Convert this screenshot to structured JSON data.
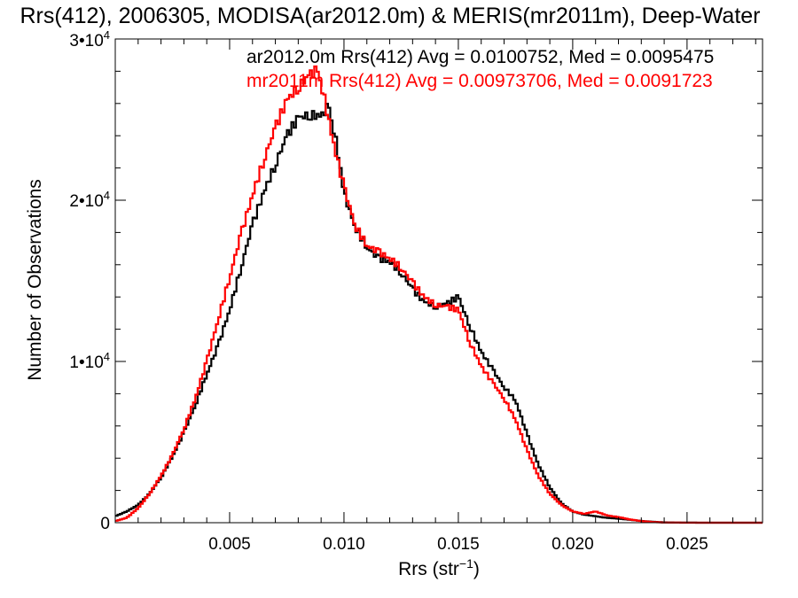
{
  "chart_data": {
    "type": "line",
    "title": "Rrs(412), 2006305, MODISA(ar2012.0m) & MERIS(mr2011m), Deep-Water",
    "xlabel": "Rrs (str",
    "xlabel_sup": "−1",
    "xlabel_end": ")",
    "ylabel": "Number of Observations",
    "xlim": [
      0.0,
      0.0283
    ],
    "ylim": [
      0,
      30000
    ],
    "x_ticks": [
      {
        "value": 0.005,
        "label": "0.005"
      },
      {
        "value": 0.01,
        "label": "0.010"
      },
      {
        "value": 0.015,
        "label": "0.015"
      },
      {
        "value": 0.02,
        "label": "0.020"
      },
      {
        "value": 0.025,
        "label": "0.025"
      }
    ],
    "y_ticks": [
      {
        "value": 0,
        "label": "0",
        "exp": ""
      },
      {
        "value": 10000,
        "label": "1•10",
        "exp": "4"
      },
      {
        "value": 20000,
        "label": "2•10",
        "exp": "4"
      },
      {
        "value": 30000,
        "label": "3•10",
        "exp": "4"
      }
    ],
    "legend": [
      {
        "text": "ar2012.0m Rrs(412) Avg = 0.0100752, Med = 0.0095475",
        "color": "#000000"
      },
      {
        "text": "mr2011m Rrs(412) Avg = 0.00973706, Med = 0.0091723",
        "color": "#ff0000"
      }
    ],
    "legend_placement": "top-right",
    "grid": false,
    "series": [
      {
        "color": "#000000",
        "x": [
          0.0,
          0.0005,
          0.001,
          0.0015,
          0.002,
          0.0025,
          0.003,
          0.0035,
          0.004,
          0.0045,
          0.005,
          0.0055,
          0.006,
          0.0065,
          0.007,
          0.0075,
          0.008,
          0.0085,
          0.009,
          0.0093,
          0.0095,
          0.0098,
          0.01,
          0.0105,
          0.011,
          0.0115,
          0.012,
          0.0125,
          0.013,
          0.0135,
          0.014,
          0.0145,
          0.015,
          0.0155,
          0.016,
          0.0165,
          0.017,
          0.0175,
          0.018,
          0.0185,
          0.019,
          0.0195,
          0.02,
          0.0205,
          0.021,
          0.0215,
          0.022,
          0.0225,
          0.023,
          0.0235,
          0.024,
          0.025,
          0.026,
          0.0283
        ],
        "y": [
          400,
          700,
          1100,
          1800,
          2800,
          4100,
          5600,
          7300,
          9200,
          11000,
          13200,
          15800,
          18500,
          20500,
          22200,
          24000,
          25100,
          25300,
          25200,
          25800,
          24800,
          22500,
          20400,
          18300,
          17100,
          16400,
          16200,
          15500,
          14500,
          13700,
          13400,
          13600,
          14000,
          12200,
          10600,
          9500,
          8400,
          7600,
          5500,
          3600,
          2200,
          1200,
          700,
          500,
          400,
          300,
          250,
          180,
          110,
          60,
          20,
          5,
          0,
          0
        ]
      },
      {
        "color": "#ff0000",
        "x": [
          0.0,
          0.0005,
          0.001,
          0.0015,
          0.002,
          0.0025,
          0.003,
          0.0035,
          0.004,
          0.0045,
          0.005,
          0.0055,
          0.006,
          0.0065,
          0.007,
          0.0075,
          0.008,
          0.0085,
          0.0088,
          0.009,
          0.0095,
          0.01,
          0.0105,
          0.011,
          0.0115,
          0.012,
          0.0125,
          0.013,
          0.0135,
          0.014,
          0.0145,
          0.015,
          0.0155,
          0.016,
          0.0165,
          0.017,
          0.0175,
          0.018,
          0.0185,
          0.019,
          0.0195,
          0.02,
          0.0205,
          0.021,
          0.0215,
          0.022,
          0.0225,
          0.023,
          0.0235,
          0.024,
          0.025,
          0.026,
          0.0283
        ],
        "y": [
          100,
          300,
          900,
          1800,
          2900,
          4200,
          5800,
          7700,
          10000,
          12600,
          15200,
          17900,
          20300,
          22500,
          24500,
          26200,
          27000,
          27800,
          28000,
          27300,
          23800,
          20800,
          18400,
          17200,
          16800,
          16400,
          15800,
          14900,
          14000,
          13500,
          13400,
          13200,
          11200,
          9700,
          8700,
          7700,
          6400,
          4500,
          2900,
          1800,
          1100,
          700,
          550,
          700,
          450,
          350,
          200,
          100,
          40,
          10,
          0,
          0,
          0
        ]
      }
    ]
  }
}
